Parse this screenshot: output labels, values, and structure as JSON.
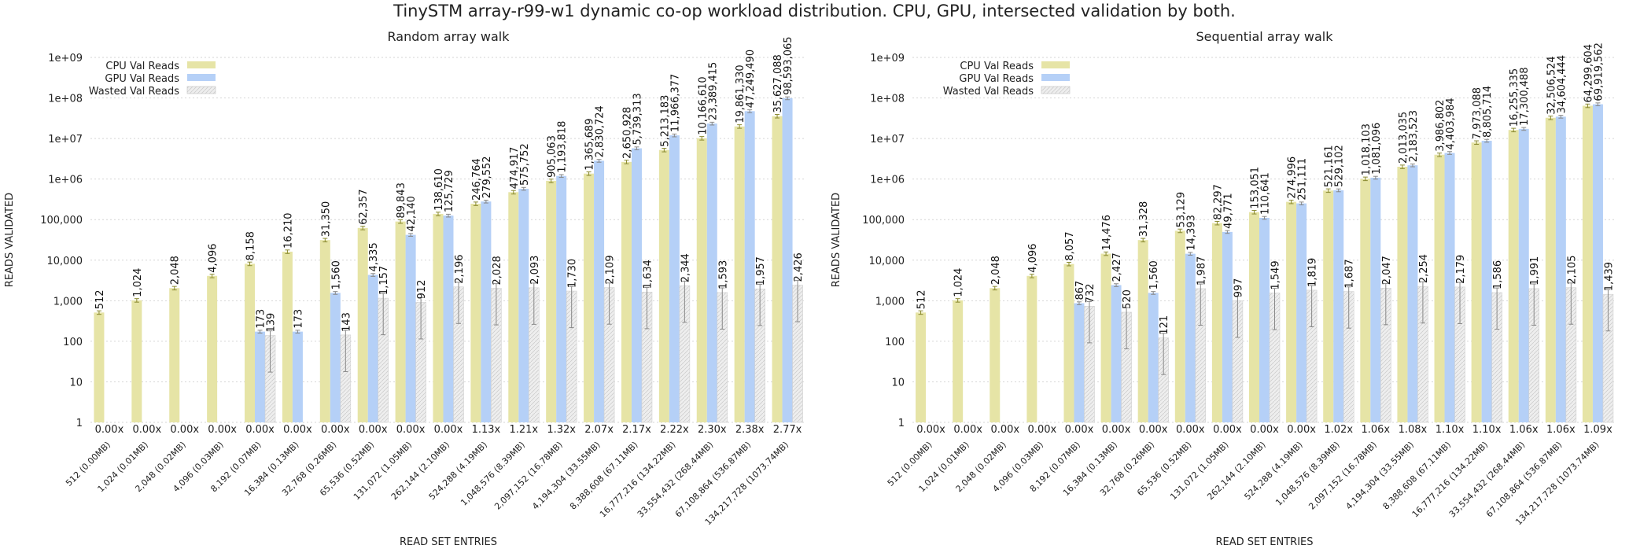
{
  "figure": {
    "title": "TinySTM array-r99-w1 dynamic co-op workload distribution. CPU, GPU, intersected validation by both."
  },
  "colors": {
    "cpu": "#e6e4a6",
    "gpu": "#b5d0f7",
    "wasted": "#eeeeee",
    "grid": "#d6d6d6",
    "error": "#888888"
  },
  "chart_data": [
    {
      "type": "bar",
      "title": "Random array walk",
      "xlabel": "READ SET ENTRIES",
      "ylabel": "READS VALIDATED",
      "yscale": "log",
      "ylim": [
        1,
        1000000000
      ],
      "yticks": [
        "1",
        "10",
        "100",
        "1,000",
        "10,000",
        "100,000",
        "1e+06",
        "1e+07",
        "1e+08",
        "1e+09"
      ],
      "grid": true,
      "legend_position": "top-left",
      "categories": [
        "512 (0.00MB)",
        "1,024 (0.01MB)",
        "2,048 (0.02MB)",
        "4,096 (0.03MB)",
        "8,192 (0.07MB)",
        "16,384 (0.13MB)",
        "32,768 (0.26MB)",
        "65,536 (0.52MB)",
        "131,072 (1.05MB)",
        "262,144 (2.10MB)",
        "524,288 (4.19MB)",
        "1,048,576 (8.39MB)",
        "2,097,152 (16.78MB)",
        "4,194,304 (33.55MB)",
        "8,388,608 (67.11MB)",
        "16,777,216 (134.22MB)",
        "33,554,432 (268.44MB)",
        "67,108,864 (536.87MB)",
        "134,217,728 (1073.74MB)"
      ],
      "ratios": [
        "0.00x",
        "0.00x",
        "0.00x",
        "0.00x",
        "0.00x",
        "0.00x",
        "0.00x",
        "0.00x",
        "0.00x",
        "0.00x",
        "1.13x",
        "1.21x",
        "1.32x",
        "2.07x",
        "2.17x",
        "2.22x",
        "2.30x",
        "2.38x",
        "2.77x"
      ],
      "series": [
        {
          "name": "CPU Val Reads",
          "values": [
            512,
            1024,
            2048,
            4096,
            8158,
            16210,
            31350,
            62357,
            89843,
            138610,
            246764,
            474917,
            905063,
            1365689,
            2650928,
            5213183,
            10166610,
            19861330,
            35627088
          ],
          "labels": [
            "512",
            "1,024",
            "2,048",
            "4,096",
            "8,158",
            "16,210",
            "31,350",
            "62,357",
            "89,843",
            "138,610",
            "246,764",
            "474,917",
            "905,063",
            "1,365,689",
            "2,650,928",
            "5,213,183",
            "10,166,610",
            "19,861,330",
            "35,627,088"
          ]
        },
        {
          "name": "GPU Val Reads",
          "values": [
            null,
            null,
            null,
            null,
            173,
            173,
            1560,
            4335,
            42140,
            125729,
            279552,
            575752,
            1193818,
            2830724,
            5739313,
            11966377,
            23389415,
            47249490,
            98593065
          ],
          "labels": [
            "",
            "",
            "",
            "",
            "173",
            "173",
            "1,560",
            "4,335",
            "42,140",
            "125,729",
            "279,552",
            "575,752",
            "1,193,818",
            "2,830,724",
            "5,739,313",
            "11,966,377",
            "23,389,415",
            "47,249,490",
            "98,593,065"
          ]
        },
        {
          "name": "Wasted Val Reads",
          "values": [
            null,
            null,
            null,
            null,
            139,
            null,
            143,
            1157,
            912,
            2196,
            2028,
            2093,
            1730,
            2109,
            1634,
            2344,
            1593,
            1957,
            2426
          ],
          "labels": [
            "",
            "",
            "",
            "",
            "139",
            "",
            "143",
            "1,157",
            "912",
            "2,196",
            "2,028",
            "2,093",
            "1,730",
            "2,109",
            "1,634",
            "2,344",
            "1,593",
            "1,957",
            "2,426"
          ]
        }
      ]
    },
    {
      "type": "bar",
      "title": "Sequential array walk",
      "xlabel": "READ SET ENTRIES",
      "ylabel": "READS VALIDATED",
      "yscale": "log",
      "ylim": [
        1,
        1000000000
      ],
      "yticks": [
        "1",
        "10",
        "100",
        "1,000",
        "10,000",
        "100,000",
        "1e+06",
        "1e+07",
        "1e+08",
        "1e+09"
      ],
      "grid": true,
      "legend_position": "top-left",
      "categories": [
        "512 (0.00MB)",
        "1,024 (0.01MB)",
        "2,048 (0.02MB)",
        "4,096 (0.03MB)",
        "8,192 (0.07MB)",
        "16,384 (0.13MB)",
        "32,768 (0.26MB)",
        "65,536 (0.52MB)",
        "131,072 (1.05MB)",
        "262,144 (2.10MB)",
        "524,288 (4.19MB)",
        "1,048,576 (8.39MB)",
        "2,097,152 (16.78MB)",
        "4,194,304 (33.55MB)",
        "8,388,608 (67.11MB)",
        "16,777,216 (134.22MB)",
        "33,554,432 (268.44MB)",
        "67,108,864 (536.87MB)",
        "134,217,728 (1073.74MB)"
      ],
      "ratios": [
        "0.00x",
        "0.00x",
        "0.00x",
        "0.00x",
        "0.00x",
        "0.00x",
        "0.00x",
        "0.00x",
        "0.00x",
        "0.00x",
        "0.00x",
        "1.02x",
        "1.06x",
        "1.08x",
        "1.10x",
        "1.10x",
        "1.06x",
        "1.06x",
        "1.09x"
      ],
      "series": [
        {
          "name": "CPU Val Reads",
          "values": [
            512,
            1024,
            2048,
            4096,
            8057,
            14476,
            31328,
            53129,
            82297,
            153051,
            274996,
            521161,
            1018103,
            2013035,
            3986802,
            7973088,
            16255335,
            32506524,
            64299604
          ],
          "labels": [
            "512",
            "1,024",
            "2,048",
            "4,096",
            "8,057",
            "14,476",
            "31,328",
            "53,129",
            "82,297",
            "153,051",
            "274,996",
            "521,161",
            "1,018,103",
            "2,013,035",
            "3,986,802",
            "7,973,088",
            "16,255,335",
            "32,506,524",
            "64,299,604"
          ]
        },
        {
          "name": "GPU Val Reads",
          "values": [
            null,
            null,
            null,
            null,
            867,
            2427,
            1560,
            14393,
            49771,
            110641,
            251111,
            529102,
            1081096,
            2183523,
            4403984,
            8805714,
            17300488,
            34604444,
            69919562
          ],
          "labels": [
            "",
            "",
            "",
            "",
            "867",
            "2,427",
            "1,560",
            "14,393",
            "49,771",
            "110,641",
            "251,111",
            "529,102",
            "1,081,096",
            "2,183,523",
            "4,403,984",
            "8,805,714",
            "17,300,488",
            "34,604,444",
            "69,919,562"
          ]
        },
        {
          "name": "Wasted Val Reads",
          "values": [
            null,
            null,
            null,
            null,
            732,
            520,
            121,
            1987,
            997,
            1549,
            1819,
            1687,
            2047,
            2254,
            2179,
            1586,
            1991,
            2105,
            1439
          ],
          "labels": [
            "",
            "",
            "",
            "",
            "732",
            "520",
            "121",
            "1,987",
            "997",
            "1,549",
            "1,819",
            "1,687",
            "2,047",
            "2,254",
            "2,179",
            "1,586",
            "1,991",
            "2,105",
            "1,439"
          ]
        }
      ]
    }
  ]
}
